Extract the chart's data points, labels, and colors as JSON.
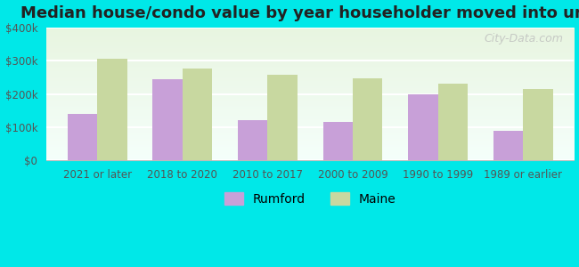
{
  "title": "Median house/condo value by year householder moved into unit",
  "categories": [
    "2021 or later",
    "2018 to 2020",
    "2010 to 2017",
    "2000 to 2009",
    "1990 to 1999",
    "1989 or earlier"
  ],
  "rumford_values": [
    140000,
    245000,
    120000,
    115000,
    200000,
    90000
  ],
  "maine_values": [
    305000,
    275000,
    258000,
    248000,
    232000,
    215000
  ],
  "rumford_color": "#c8a0d8",
  "maine_color": "#c8d8a0",
  "figure_bg": "#00e8e8",
  "plot_bg_bottom": "#f5fffb",
  "plot_bg_top": "#e8f5e0",
  "ylim": [
    0,
    400000
  ],
  "yticks": [
    0,
    100000,
    200000,
    300000,
    400000
  ],
  "ytick_labels": [
    "$0",
    "$100k",
    "$200k",
    "$300k",
    "$400k"
  ],
  "legend_labels": [
    "Rumford",
    "Maine"
  ],
  "watermark": "City-Data.com",
  "bar_width": 0.35,
  "title_fontsize": 13,
  "tick_fontsize": 8.5,
  "legend_fontsize": 10
}
